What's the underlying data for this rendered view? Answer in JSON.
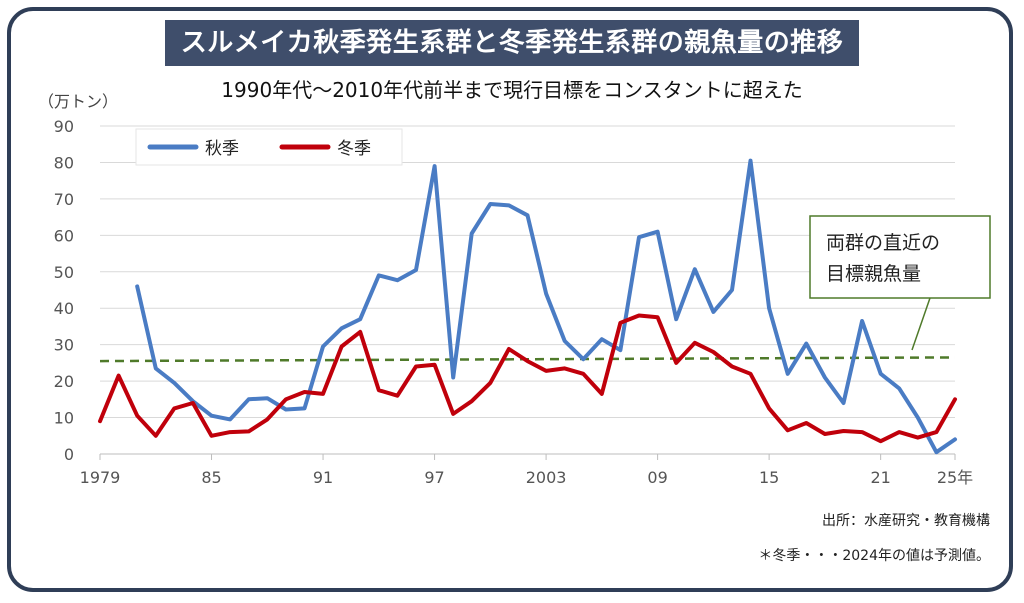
{
  "title": "スルメイカ秋季発生系群と冬季発生系群の親魚量の推移",
  "subtitle": "1990年代～2010年代前半まで現行目標をコンスタントに超えた",
  "unit_label": "（万トン）",
  "source": "出所：水産研究・教育機構",
  "note": "＊冬季・・・2024年の値は予測値。",
  "annotation": [
    "両群の直近の",
    "目標親魚量"
  ],
  "colors": {
    "autumn": "#4a7cc4",
    "winter": "#c0000b",
    "target": "#4f7a2a",
    "title_bg": "#3f4e6b"
  },
  "chart_data": {
    "type": "line",
    "title": "スルメイカ秋季発生系群と冬季発生系群の親魚量の推移",
    "ylabel": "万トン",
    "ylim": [
      0,
      90
    ],
    "yticks": [
      0,
      10,
      20,
      30,
      40,
      50,
      60,
      70,
      80,
      90
    ],
    "xlim": [
      1979,
      2025
    ],
    "xticks": [
      {
        "year": 1979,
        "label": "1979"
      },
      {
        "year": 1985,
        "label": "85"
      },
      {
        "year": 1991,
        "label": "91"
      },
      {
        "year": 1997,
        "label": "97"
      },
      {
        "year": 2003,
        "label": "2003"
      },
      {
        "year": 2009,
        "label": "09"
      },
      {
        "year": 2015,
        "label": "15"
      },
      {
        "year": 2021,
        "label": "21"
      },
      {
        "year": 2025,
        "label": "25年"
      }
    ],
    "grid": true,
    "legend": "top-left",
    "target_line": {
      "x": [
        1979,
        2025
      ],
      "y": [
        25.5,
        26.5
      ]
    },
    "series": [
      {
        "name": "秋季",
        "x": [
          1981,
          1982,
          1983,
          1984,
          1985,
          1986,
          1987,
          1988,
          1989,
          1990,
          1991,
          1992,
          1993,
          1994,
          1995,
          1996,
          1997,
          1998,
          1999,
          2000,
          2001,
          2002,
          2003,
          2004,
          2005,
          2006,
          2007,
          2008,
          2009,
          2010,
          2011,
          2012,
          2013,
          2014,
          2015,
          2016,
          2017,
          2018,
          2019,
          2020,
          2021,
          2022,
          2023,
          2024,
          2025
        ],
        "values": [
          46,
          23.5,
          19.5,
          14.5,
          10.5,
          9.5,
          15,
          15.3,
          12.2,
          12.5,
          29.5,
          34.5,
          37,
          49,
          47.7,
          50.5,
          79,
          21,
          60.5,
          68.6,
          68.2,
          65.5,
          44,
          31,
          26,
          31.5,
          28.5,
          59.5,
          61,
          37,
          50.7,
          39,
          45,
          80.5,
          40,
          22,
          30.3,
          21,
          14,
          36.5,
          22,
          18,
          10,
          0.5,
          4
        ]
      },
      {
        "name": "冬季",
        "x": [
          1979,
          1980,
          1981,
          1982,
          1983,
          1984,
          1985,
          1986,
          1987,
          1988,
          1989,
          1990,
          1991,
          1992,
          1993,
          1994,
          1995,
          1996,
          1997,
          1998,
          1999,
          2000,
          2001,
          2002,
          2003,
          2004,
          2005,
          2006,
          2007,
          2008,
          2009,
          2010,
          2011,
          2012,
          2013,
          2014,
          2015,
          2016,
          2017,
          2018,
          2019,
          2020,
          2021,
          2022,
          2023,
          2024,
          2025
        ],
        "values": [
          9,
          21.5,
          10.5,
          5,
          12.5,
          14,
          5,
          6,
          6.2,
          9.5,
          15,
          17,
          16.5,
          29.5,
          33.5,
          17.5,
          16,
          24,
          24.5,
          11,
          14.5,
          19.5,
          28.8,
          25.5,
          22.8,
          23.5,
          22,
          16.5,
          36,
          38,
          37.5,
          25,
          30.5,
          28,
          24,
          22,
          12.5,
          6.5,
          8.5,
          5.5,
          6.3,
          6,
          3.5,
          6,
          4.5,
          6,
          15
        ]
      }
    ]
  }
}
